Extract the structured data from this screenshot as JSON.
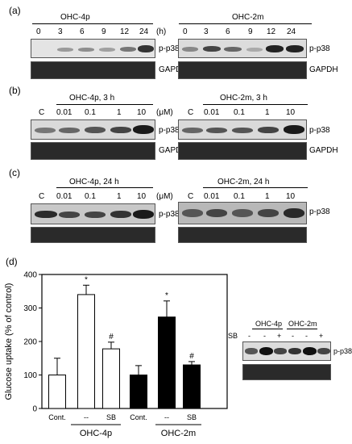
{
  "a": {
    "panel_label": "(a)",
    "left_title": "OHC-4p",
    "right_title": "OHC-2m",
    "lanes": [
      "0",
      "3",
      "6",
      "9",
      "12",
      "24"
    ],
    "unit": "(h)",
    "row1_label": "p-p38",
    "row2_label": "GAPDH"
  },
  "b": {
    "panel_label": "(b)",
    "left_title": "OHC-4p, 3 h",
    "right_title": "OHC-2m, 3 h",
    "lanes": [
      "C",
      "0.01",
      "0.1",
      "1",
      "10"
    ],
    "unit": "(μM)",
    "row1_label": "p-p38",
    "row2_label": "GAPDH"
  },
  "c": {
    "panel_label": "(c)",
    "left_title": "OHC-4p, 24 h",
    "right_title": "OHC-2m, 24 h",
    "lanes": [
      "C",
      "0.01",
      "0.1",
      "1",
      "10"
    ],
    "unit": "(μM)",
    "row1_label": "p-p38"
  },
  "d": {
    "panel_label": "(d)",
    "chart_data": {
      "type": "bar",
      "ylabel": "Glucose uptake (% of control)",
      "ylim": [
        0,
        400
      ],
      "yticks": [
        0,
        100,
        200,
        300,
        400
      ],
      "categories": [
        "Cont.",
        "--",
        "SB",
        "Cont.",
        "--",
        "SB"
      ],
      "groups": [
        "OHC-4p",
        "OHC-2m"
      ],
      "values": [
        100,
        340,
        178,
        100,
        273,
        130
      ],
      "errors": [
        50,
        28,
        20,
        28,
        48,
        10
      ],
      "fills": [
        "white",
        "white",
        "white",
        "black",
        "black",
        "black"
      ],
      "annotations": [
        "",
        "*",
        "#",
        "",
        "*",
        "#"
      ]
    },
    "inset": {
      "sb_label": "SB",
      "left_title": "OHC-4p",
      "right_title": "OHC-2m",
      "sb_signs": [
        "-",
        "-",
        "+",
        "-",
        "-",
        "+"
      ],
      "row1_label": "p-p38"
    }
  },
  "colors": {
    "blot_bg": "#d8d8d8",
    "band_dark": "#111111",
    "bar_black": "#000000",
    "bar_white": "#ffffff"
  }
}
